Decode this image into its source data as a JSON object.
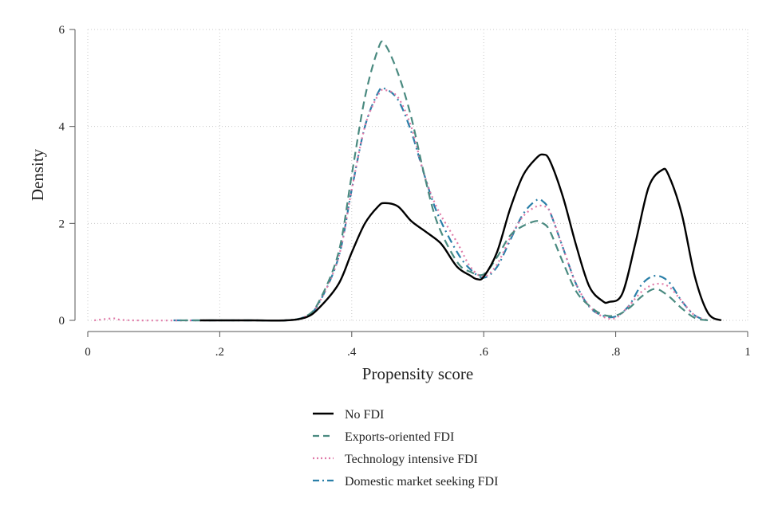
{
  "chart_data": {
    "type": "line",
    "xlabel": "Propensity score",
    "ylabel": "Density",
    "xlim": [
      0,
      1
    ],
    "ylim": [
      0,
      6
    ],
    "x_ticks": [
      {
        "value": 0,
        "label": "0"
      },
      {
        "value": 0.2,
        "label": ".2"
      },
      {
        "value": 0.4,
        "label": ".4"
      },
      {
        "value": 0.6,
        "label": ".6"
      },
      {
        "value": 0.8,
        "label": ".8"
      },
      {
        "value": 1,
        "label": "1"
      }
    ],
    "y_ticks": [
      {
        "value": 0,
        "label": "0"
      },
      {
        "value": 2,
        "label": "2"
      },
      {
        "value": 4,
        "label": "4"
      },
      {
        "value": 6,
        "label": "6"
      }
    ],
    "grid": true,
    "legend_position": "bottom",
    "series": [
      {
        "name": "No FDI",
        "color": "#000000",
        "style": "solid",
        "x": [
          0.17,
          0.25,
          0.3,
          0.33,
          0.35,
          0.38,
          0.4,
          0.42,
          0.44,
          0.45,
          0.47,
          0.49,
          0.51,
          0.53,
          0.54,
          0.56,
          0.58,
          0.59,
          0.6,
          0.62,
          0.64,
          0.66,
          0.68,
          0.69,
          0.7,
          0.72,
          0.74,
          0.76,
          0.78,
          0.79,
          0.81,
          0.83,
          0.85,
          0.87,
          0.88,
          0.9,
          0.92,
          0.94,
          0.96
        ],
        "y": [
          0.0,
          0.0,
          0.0,
          0.06,
          0.25,
          0.75,
          1.4,
          2.0,
          2.35,
          2.42,
          2.35,
          2.05,
          1.85,
          1.65,
          1.5,
          1.1,
          0.92,
          0.85,
          0.9,
          1.4,
          2.3,
          3.0,
          3.35,
          3.42,
          3.3,
          2.55,
          1.55,
          0.7,
          0.4,
          0.38,
          0.55,
          1.6,
          2.75,
          3.1,
          3.0,
          2.2,
          0.9,
          0.15,
          0.0
        ]
      },
      {
        "name": "Exports-oriented FDI",
        "color": "#4a8a80",
        "style": "dashed",
        "x": [
          0.14,
          0.25,
          0.3,
          0.33,
          0.35,
          0.38,
          0.4,
          0.42,
          0.44,
          0.45,
          0.47,
          0.49,
          0.51,
          0.53,
          0.56,
          0.58,
          0.6,
          0.62,
          0.64,
          0.66,
          0.68,
          0.69,
          0.7,
          0.72,
          0.74,
          0.76,
          0.78,
          0.8,
          0.82,
          0.84,
          0.86,
          0.88,
          0.9,
          0.92,
          0.94
        ],
        "y": [
          0.0,
          0.0,
          0.0,
          0.08,
          0.38,
          1.4,
          3.0,
          4.6,
          5.6,
          5.7,
          5.1,
          4.2,
          3.0,
          2.0,
          1.2,
          1.0,
          0.95,
          1.3,
          1.75,
          1.95,
          2.05,
          2.0,
          1.85,
          1.2,
          0.6,
          0.3,
          0.12,
          0.1,
          0.25,
          0.5,
          0.65,
          0.5,
          0.25,
          0.05,
          0.0
        ]
      },
      {
        "name": "Technology intensive FDI",
        "color": "#e07aa8",
        "style": "dotted",
        "x": [
          0.01,
          0.04,
          0.07,
          0.25,
          0.3,
          0.33,
          0.35,
          0.38,
          0.4,
          0.42,
          0.44,
          0.45,
          0.47,
          0.49,
          0.51,
          0.53,
          0.56,
          0.58,
          0.6,
          0.62,
          0.64,
          0.66,
          0.68,
          0.69,
          0.7,
          0.72,
          0.74,
          0.76,
          0.78,
          0.8,
          0.82,
          0.84,
          0.86,
          0.88,
          0.9,
          0.92,
          0.94
        ],
        "y": [
          0.0,
          0.04,
          0.0,
          0.0,
          0.0,
          0.08,
          0.35,
          1.3,
          2.7,
          4.0,
          4.65,
          4.75,
          4.6,
          4.0,
          3.0,
          2.3,
          1.6,
          1.1,
          0.9,
          1.15,
          1.7,
          2.15,
          2.35,
          2.35,
          2.25,
          1.5,
          0.75,
          0.3,
          0.08,
          0.05,
          0.3,
          0.6,
          0.75,
          0.7,
          0.4,
          0.1,
          0.0
        ]
      },
      {
        "name": "Domestic market seeking FDI",
        "color": "#2a7fa8",
        "style": "dashdot",
        "x": [
          0.13,
          0.25,
          0.3,
          0.33,
          0.35,
          0.38,
          0.4,
          0.42,
          0.44,
          0.45,
          0.47,
          0.49,
          0.51,
          0.53,
          0.56,
          0.58,
          0.6,
          0.62,
          0.64,
          0.66,
          0.68,
          0.69,
          0.7,
          0.72,
          0.74,
          0.76,
          0.78,
          0.8,
          0.82,
          0.84,
          0.86,
          0.88,
          0.9,
          0.92,
          0.94
        ],
        "y": [
          0.0,
          0.0,
          0.0,
          0.08,
          0.35,
          1.3,
          2.7,
          4.0,
          4.7,
          4.78,
          4.55,
          3.9,
          3.0,
          2.2,
          1.4,
          1.05,
          0.88,
          1.1,
          1.65,
          2.2,
          2.48,
          2.45,
          2.25,
          1.5,
          0.75,
          0.28,
          0.1,
          0.08,
          0.3,
          0.75,
          0.92,
          0.8,
          0.4,
          0.1,
          0.0
        ]
      }
    ]
  }
}
